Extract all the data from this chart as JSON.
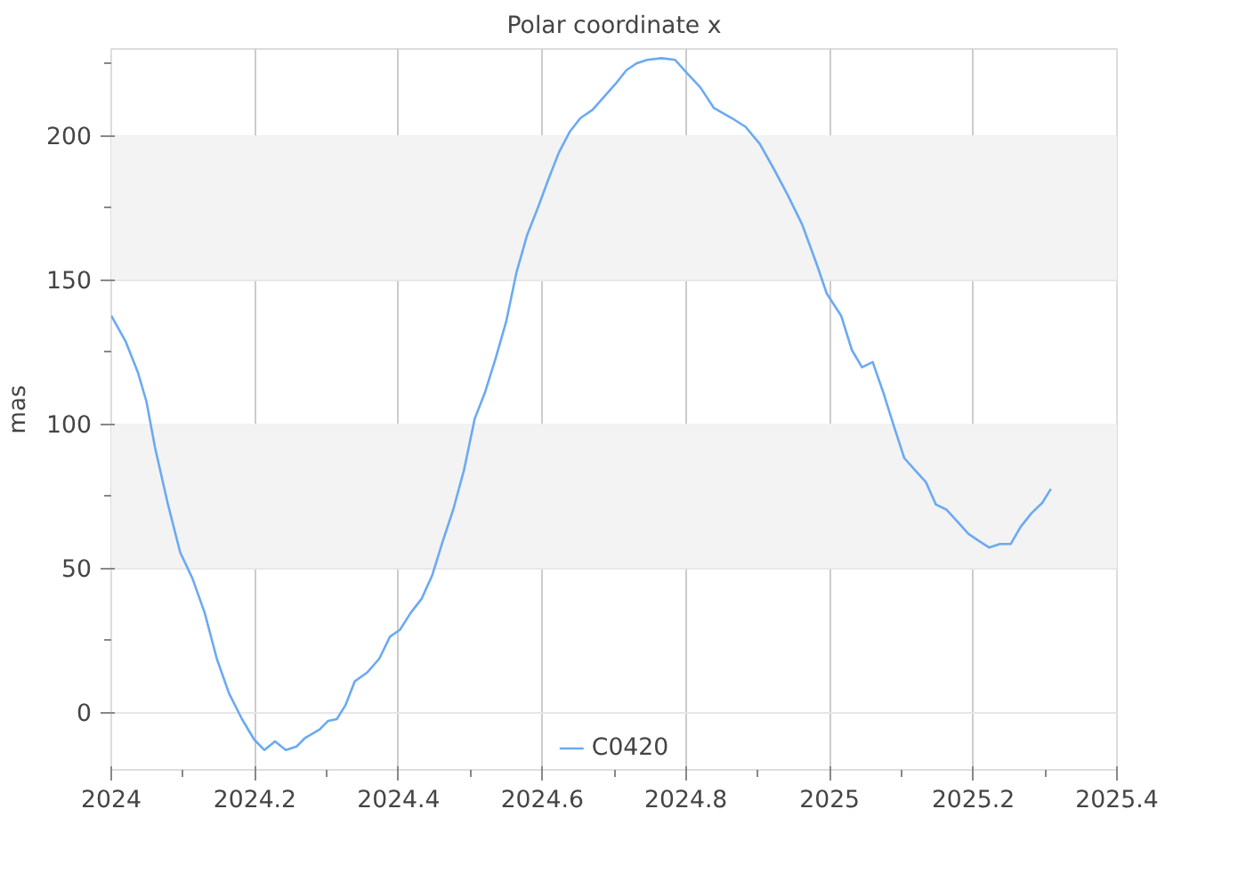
{
  "chart_data": {
    "type": "line",
    "title": "Polar coordinate x",
    "ylabel": "mas",
    "xlim": [
      2024,
      2025.4
    ],
    "xticks": [
      2024,
      2024.2,
      2024.4,
      2024.6,
      2024.8,
      2025,
      2025.2,
      2025.4
    ],
    "ylim": [
      -20,
      230
    ],
    "yticks": [
      0,
      50,
      100,
      150,
      200
    ],
    "grid": true,
    "legend": "bottom",
    "bands": [
      {
        "axis": "y",
        "from": 50,
        "to": 100,
        "color": "#f3f3f3"
      },
      {
        "axis": "y",
        "from": 150,
        "to": 200,
        "color": "#f3f3f3"
      }
    ],
    "series": [
      {
        "name": "C0420",
        "color": "#6aaaf2",
        "x": [
          2024.0,
          2024.02,
          2024.037,
          2024.049,
          2024.061,
          2024.079,
          2024.096,
          2024.113,
          2024.13,
          2024.147,
          2024.164,
          2024.182,
          2024.199,
          2024.213,
          2024.228,
          2024.243,
          2024.258,
          2024.27,
          2024.29,
          2024.302,
          2024.314,
          2024.326,
          2024.339,
          2024.356,
          2024.373,
          2024.388,
          2024.402,
          2024.417,
          2024.432,
          2024.447,
          2024.461,
          2024.476,
          2024.491,
          2024.506,
          2024.52,
          2024.535,
          2024.55,
          2024.564,
          2024.579,
          2024.594,
          2024.609,
          2024.623,
          2024.638,
          2024.653,
          2024.67,
          2024.687,
          2024.702,
          2024.717,
          2024.731,
          2024.746,
          2024.766,
          2024.785,
          2024.8,
          2024.82,
          2024.839,
          2024.864,
          2024.883,
          2024.903,
          2024.923,
          2024.942,
          2024.962,
          2024.982,
          2024.996,
          2025.016,
          2025.031,
          2025.045,
          2025.06,
          2025.075,
          2025.09,
          2025.104,
          2025.119,
          2025.134,
          2025.148,
          2025.163,
          2025.178,
          2025.193,
          2025.207,
          2025.222,
          2025.237,
          2025.252,
          2025.266,
          2025.281,
          2025.296,
          2025.308
        ],
        "values": [
          137.5,
          128.6,
          117.9,
          107.7,
          91.7,
          72.0,
          55.4,
          46.4,
          34.5,
          18.5,
          6.5,
          -2.4,
          -9.5,
          -13.1,
          -10.1,
          -13.1,
          -11.9,
          -8.9,
          -6.0,
          -3.0,
          -2.4,
          2.4,
          10.7,
          13.7,
          18.5,
          26.2,
          28.6,
          34.5,
          39.3,
          47.6,
          58.9,
          70.2,
          83.9,
          101.8,
          110.7,
          122.6,
          135.7,
          152.4,
          165.5,
          175.0,
          185.1,
          194.0,
          201.2,
          206.0,
          208.9,
          213.7,
          217.9,
          222.6,
          225.0,
          226.2,
          226.8,
          226.2,
          222.0,
          216.7,
          209.5,
          206.0,
          203.0,
          197.0,
          188.1,
          179.2,
          169.0,
          155.4,
          145.2,
          137.5,
          125.6,
          119.6,
          121.4,
          110.7,
          98.8,
          88.1,
          83.9,
          79.8,
          72.0,
          70.2,
          66.1,
          61.9,
          59.5,
          57.1,
          58.3,
          58.3,
          64.3,
          69.0,
          72.6,
          77.4
        ]
      }
    ]
  }
}
